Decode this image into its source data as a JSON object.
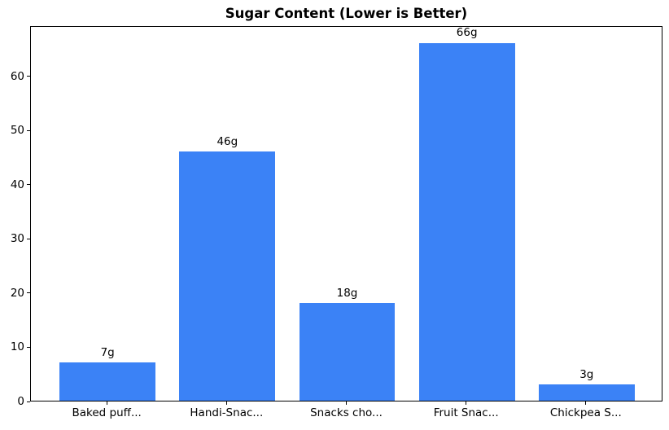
{
  "chart_data": {
    "type": "bar",
    "title": "Sugar Content (Lower is Better)",
    "categories": [
      "Baked puff...",
      "Handi-Snac...",
      "Snacks cho...",
      "Fruit Snac...",
      "Chickpea S..."
    ],
    "values": [
      7,
      46,
      18,
      66,
      3
    ],
    "value_labels": [
      "7g",
      "46g",
      "18g",
      "66g",
      "3g"
    ],
    "xlabel": "",
    "ylabel": "",
    "y_ticks": [
      0,
      10,
      20,
      30,
      40,
      50,
      60
    ],
    "ylim": [
      0,
      69.3
    ],
    "xlim": [
      -0.64,
      4.64
    ],
    "bar_width_units": 0.8,
    "grid": false,
    "legend_position": "none",
    "bar_color": "#3b82f6",
    "axis_color": "#000000",
    "text_color": "#000000",
    "background_color": "#ffffff"
  }
}
